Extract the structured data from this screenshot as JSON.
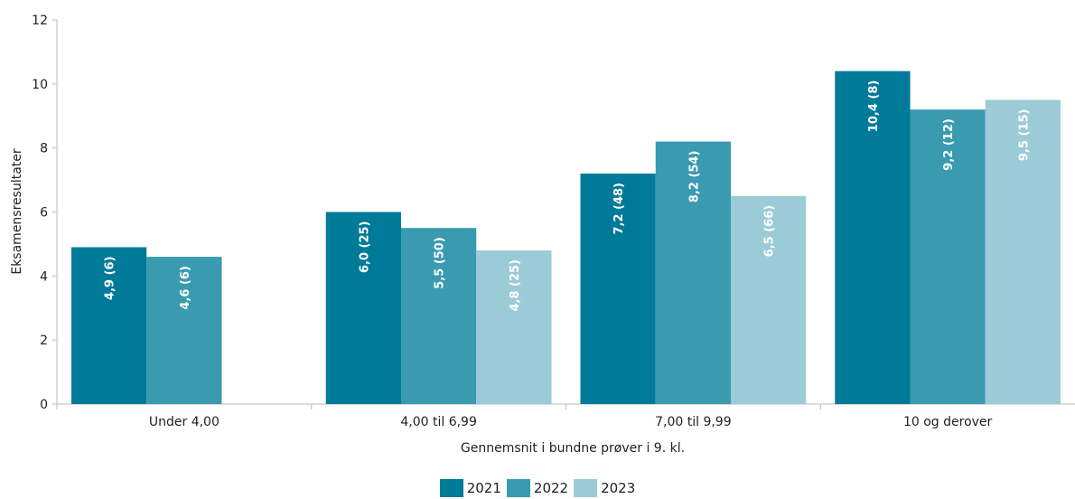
{
  "chart_data": {
    "type": "bar",
    "title": "",
    "xlabel": "Gennemsnit i bundne prøver i 9. kl.",
    "ylabel": "Eksamensresultater",
    "ylim": [
      0,
      12
    ],
    "yticks": [
      0,
      2,
      4,
      6,
      8,
      10,
      12
    ],
    "categories": [
      "Under 4,00",
      "4,00 til 6,99",
      "7,00 til 9,99",
      "10 og derover"
    ],
    "series": [
      {
        "name": "2021",
        "color": "#007a99",
        "values": [
          4.9,
          6.0,
          7.2,
          10.4
        ],
        "labels": [
          "4,9 (6)",
          "6,0 (25)",
          "7,2 (48)",
          "10,4 (8)"
        ]
      },
      {
        "name": "2022",
        "color": "#3a9ab0",
        "values": [
          4.6,
          5.5,
          8.2,
          9.2
        ],
        "labels": [
          "4,6 (6)",
          "5,5 (50)",
          "8,2 (54)",
          "9,2 (12)"
        ]
      },
      {
        "name": "2023",
        "color": "#9ccbd8",
        "values": [
          null,
          4.8,
          6.5,
          9.5
        ],
        "labels": [
          "",
          "4,8 (25)",
          "6,5 (66)",
          "9,5 (15)"
        ]
      }
    ],
    "grid": false,
    "legend_position": "bottom-center"
  }
}
